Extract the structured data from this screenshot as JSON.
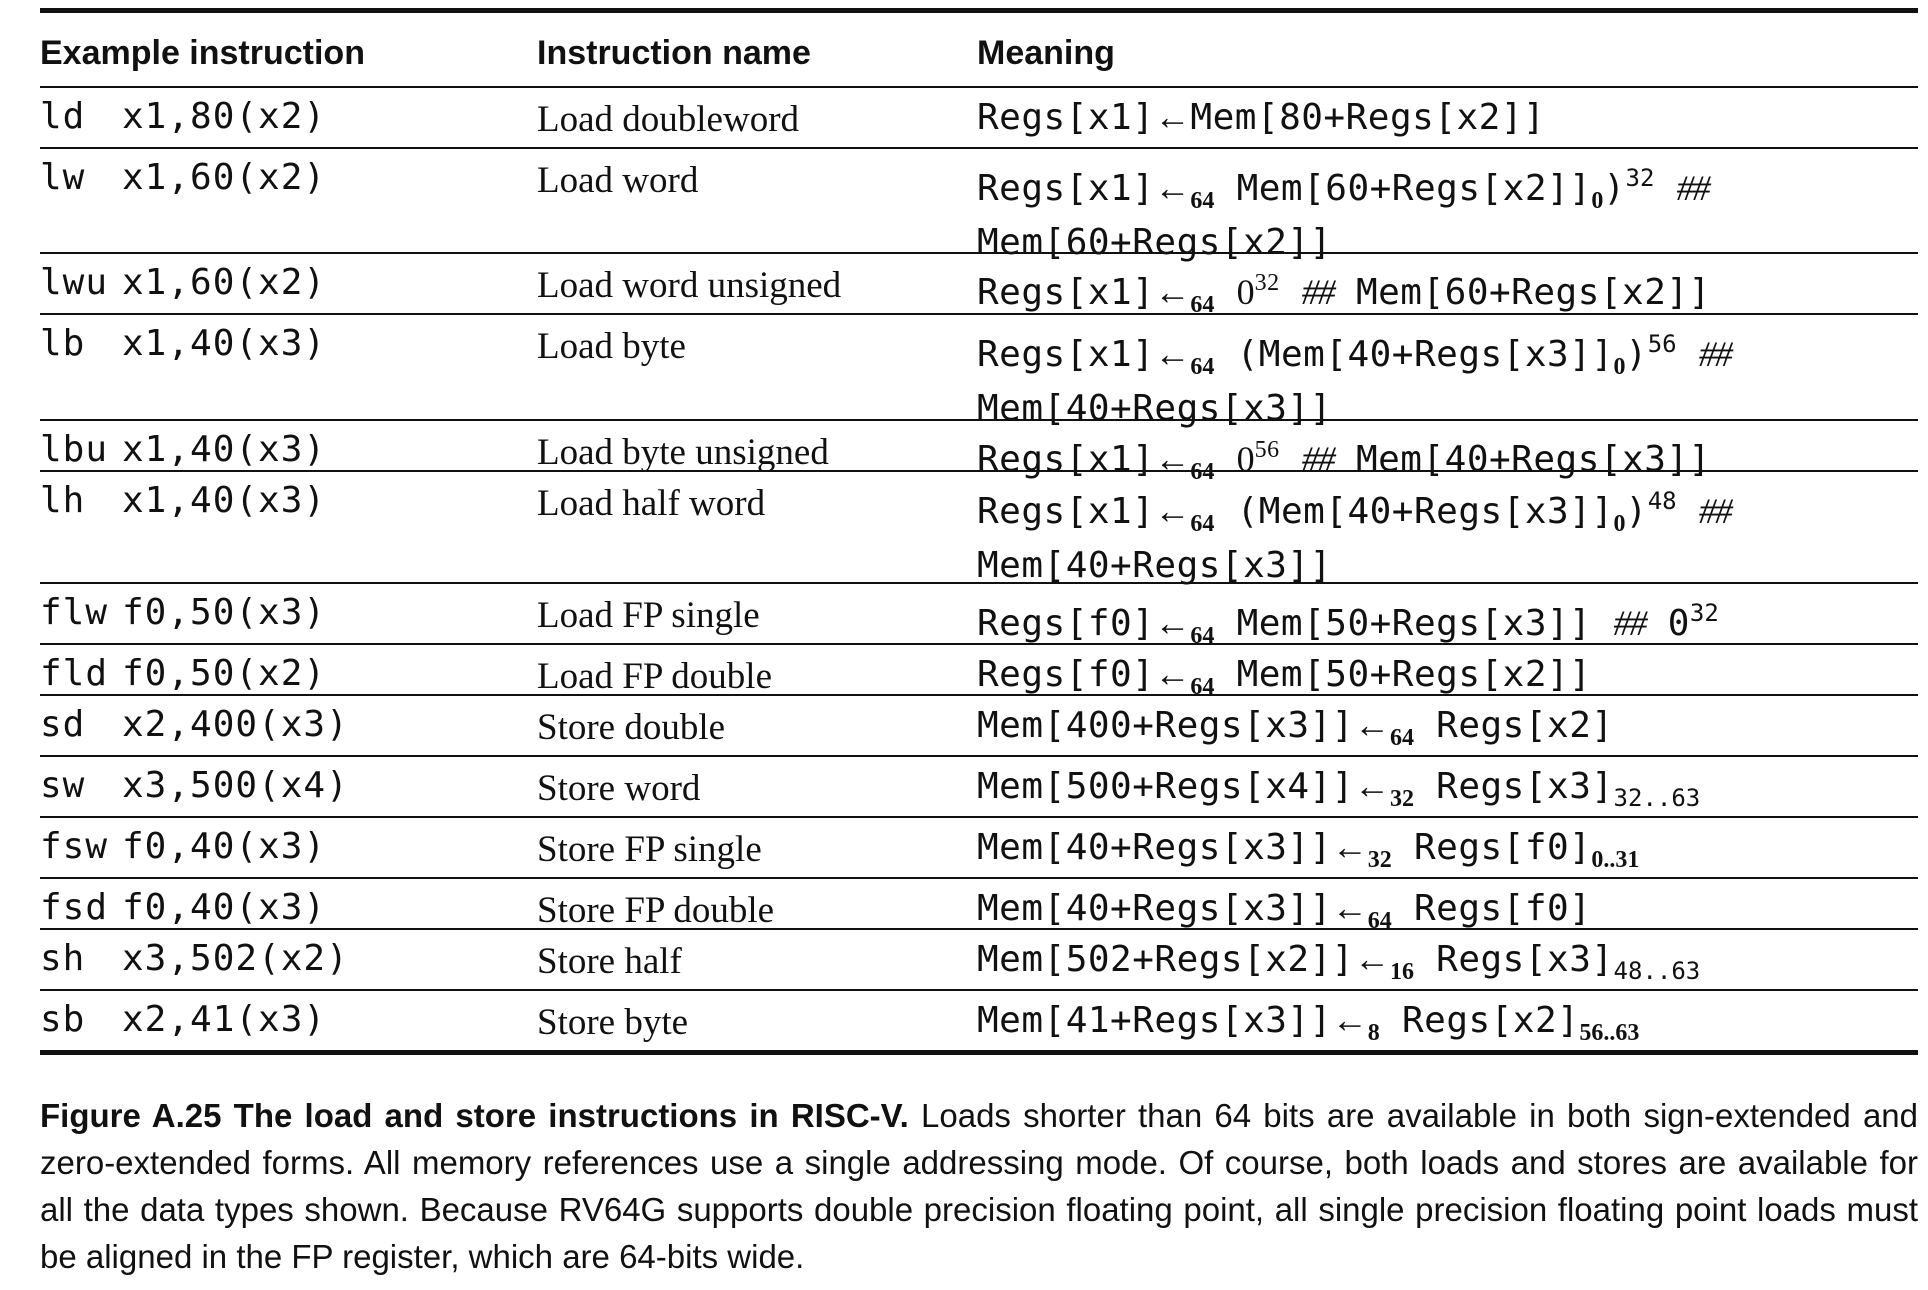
{
  "headers": [
    "Example instruction",
    "Instruction name",
    "Meaning"
  ],
  "rows": [
    {
      "op": "ld",
      "args": "x1,80(x2)",
      "name": "Load doubleword"
    },
    {
      "op": "lw",
      "args": "x1,60(x2)",
      "name": "Load word"
    },
    {
      "op": "lwu",
      "args": "x1,60(x2)",
      "name": "Load word unsigned"
    },
    {
      "op": "lb",
      "args": "x1,40(x3)",
      "name": "Load byte"
    },
    {
      "op": "lbu",
      "args": "x1,40(x3)",
      "name": "Load byte unsigned"
    },
    {
      "op": "lh",
      "args": "x1,40(x3)",
      "name": "Load half word"
    },
    {
      "op": "flw",
      "args": "f0,50(x3)",
      "name": "Load FP single"
    },
    {
      "op": "fld",
      "args": "f0,50(x2)",
      "name": "Load FP double"
    },
    {
      "op": "sd",
      "args": "x2,400(x3)",
      "name": "Store double"
    },
    {
      "op": "sw",
      "args": "x3,500(x4)",
      "name": "Store word"
    },
    {
      "op": "fsw",
      "args": "f0,40(x3)",
      "name": "Store FP single"
    },
    {
      "op": "fsd",
      "args": "f0,40(x3)",
      "name": "Store FP double"
    },
    {
      "op": "sh",
      "args": "x3,502(x2)",
      "name": "Store half"
    },
    {
      "op": "sb",
      "args": "x2,41(x3)",
      "name": "Store byte"
    }
  ],
  "meaning": {
    "arrow": "←",
    "concat": "##",
    "ld": {
      "lhs": "Regs[x1]",
      "rhs": "Mem[80+Regs[x2]]"
    },
    "lw": {
      "lhs": "Regs[x1]",
      "width": "64",
      "rhs": "Mem[60+Regs[x2]]",
      "bit": "0",
      "close": ")",
      "rep": "32",
      "line2": "Mem[60+Regs[x2]]"
    },
    "lwu": {
      "lhs": "Regs[x1]",
      "width": "64",
      "zero": "0",
      "rep": "32",
      "rhs": "Mem[60+Regs[x2]]"
    },
    "lb": {
      "lhs": "Regs[x1]",
      "width": "64",
      "open": "(",
      "rhs": "Mem[40+Regs[x3]]",
      "bit": "0",
      "close": ")",
      "rep": "56",
      "line2": "Mem[40+Regs[x3]]"
    },
    "lbu": {
      "lhs": "Regs[x1]",
      "width": "64",
      "zero": "0",
      "rep": "56",
      "rhs": "Mem[40+Regs[x3]]"
    },
    "lh": {
      "lhs": "Regs[x1]",
      "width": "64",
      "open": "(",
      "rhs": "Mem[40+Regs[x3]]",
      "bit": "0",
      "close": ")",
      "rep": "48",
      "line2": "Mem[40+Regs[x3]]"
    },
    "flw": {
      "lhs": "Regs[f0]",
      "width": "64",
      "rhs": "Mem[50+Regs[x3]]",
      "zero": "0",
      "rep": "32"
    },
    "fld": {
      "lhs": "Regs[f0]",
      "width": "64",
      "rhs": "Mem[50+Regs[x2]]"
    },
    "sd": {
      "lhs": "Mem[400+Regs[x3]]",
      "width": "64",
      "rhs": "Regs[x2]"
    },
    "sw": {
      "lhs": "Mem[500+Regs[x4]]",
      "width": "32",
      "rhs": "Regs[x3]",
      "bits": "32..63"
    },
    "fsw": {
      "lhs": "Mem[40+Regs[x3]]",
      "width": "32",
      "rhs": "Regs[f0]",
      "bits": "0..31"
    },
    "fsd": {
      "lhs": "Mem[40+Regs[x3]]",
      "width": "64",
      "rhs": "Regs[f0]"
    },
    "sh": {
      "lhs": "Mem[502+Regs[x2]]",
      "width": "16",
      "rhs": "Regs[x3]",
      "bits": "48..63"
    },
    "sb": {
      "lhs": "Mem[41+Regs[x3]]",
      "width": "8",
      "rhs": "Regs[x2]",
      "bits": "56..63"
    }
  },
  "caption": {
    "bold": "Figure A.25 The load and store instructions in RISC-V.",
    "text": " Loads shorter than 64 bits are available in both sign-extended and zero-extended forms. All memory references use a single addressing mode. Of course, both loads and stores are available for all the data types shown. Because RV64G supports double precision floating point, all single precision floating point loads must be aligned in the FP register, which are 64-bits wide."
  }
}
